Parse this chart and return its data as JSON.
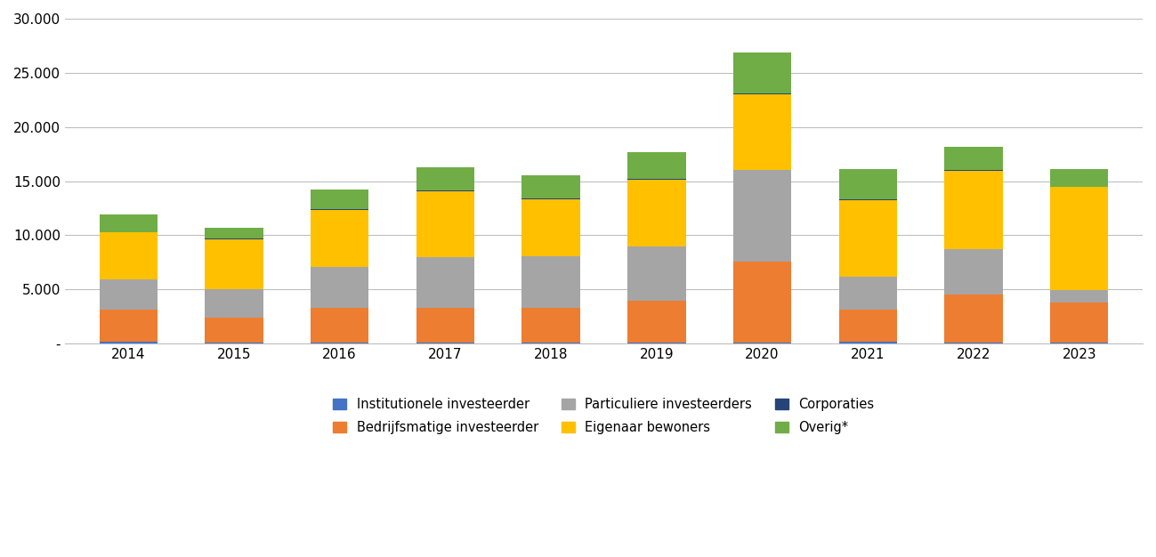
{
  "years": [
    2014,
    2015,
    2016,
    2017,
    2018,
    2019,
    2020,
    2021,
    2022,
    2023
  ],
  "series": {
    "Institutionele investeerder": [
      150,
      50,
      50,
      50,
      50,
      50,
      50,
      150,
      50,
      50
    ],
    "Bedrijfsmatige investeerder": [
      3000,
      2300,
      3200,
      3200,
      3200,
      3900,
      7500,
      3000,
      4500,
      3700
    ],
    "Particuliere investeerders": [
      2800,
      2700,
      3800,
      4700,
      4800,
      5000,
      8500,
      3000,
      4200,
      1200
    ],
    "Eigenaar bewoners": [
      4300,
      4600,
      5300,
      6100,
      5300,
      6200,
      7000,
      7100,
      7200,
      9500
    ],
    "Corporaties": [
      50,
      50,
      50,
      50,
      50,
      50,
      50,
      50,
      50,
      50
    ],
    "Overig*": [
      1600,
      1000,
      1800,
      2200,
      2100,
      2500,
      3800,
      2800,
      2200,
      1600
    ]
  },
  "colors": {
    "Institutionele investeerder": "#4472C4",
    "Bedrijfsmatige investeerder": "#ED7D31",
    "Particuliere investeerders": "#A5A5A5",
    "Eigenaar bewoners": "#FFC000",
    "Corporaties": "#264478",
    "Overig*": "#70AD47"
  },
  "legend_row1": [
    "Institutionele investeerder",
    "Bedrijfsmatige investeerder",
    "Particuliere investeerders"
  ],
  "legend_row2": [
    "Eigenaar bewoners",
    "Corporaties",
    "Overig*"
  ],
  "ylim": [
    0,
    30000
  ],
  "yticks": [
    0,
    5000,
    10000,
    15000,
    20000,
    25000,
    30000
  ],
  "ytick_labels": [
    "-",
    "5.000",
    "10.000",
    "15.000",
    "20.000",
    "25.000",
    "30.000"
  ],
  "background_color": "#FFFFFF",
  "grid_color": "#BFBFBF",
  "bar_width": 0.55
}
